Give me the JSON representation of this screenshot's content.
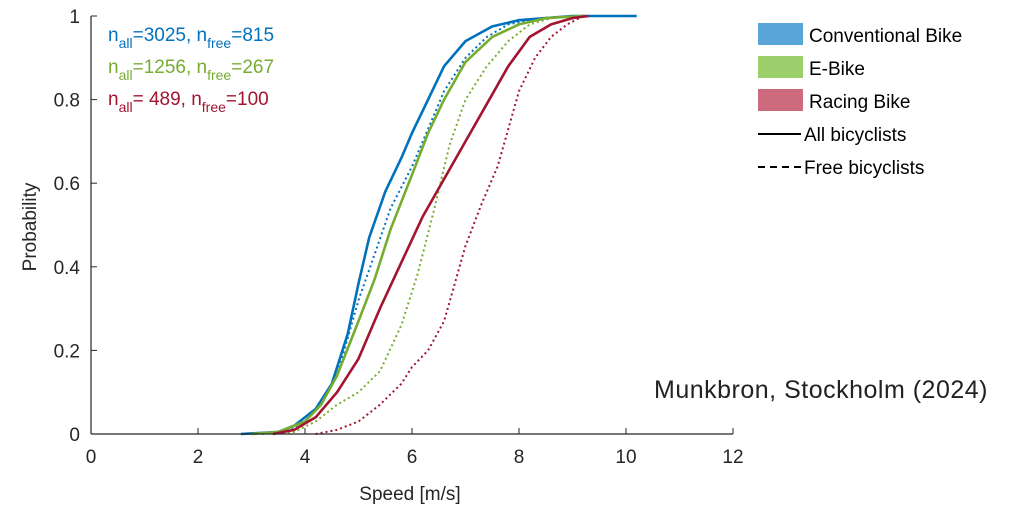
{
  "chart_data": {
    "type": "line",
    "xlabel": "Speed [m/s]",
    "ylabel": "Probability",
    "xlim": [
      0,
      12
    ],
    "ylim": [
      0,
      1
    ],
    "xticks": [
      0,
      2,
      4,
      6,
      8,
      10,
      12
    ],
    "yticks": [
      0,
      0.2,
      0.4,
      0.6,
      0.8,
      1
    ],
    "xtick_labels": [
      "0",
      "2",
      "4",
      "6",
      "8",
      "10",
      "12"
    ],
    "ytick_labels": [
      "0",
      "0.2",
      "0.4",
      "0.6",
      "0.8",
      "1"
    ],
    "grid": false,
    "legend_position": "outside-top-right",
    "legend": [
      {
        "label": "Conventional Bike",
        "kind": "patch",
        "color": "#5aa5d8"
      },
      {
        "label": "E-Bike",
        "kind": "patch",
        "color": "#9bcf6b"
      },
      {
        "label": "Racing Bike",
        "kind": "patch",
        "color": "#cd6a7e"
      },
      {
        "label": "All bicyclists",
        "kind": "line",
        "dash": "solid",
        "color": "#000000"
      },
      {
        "label": "Free bicyclists",
        "kind": "line",
        "dash": "dotted",
        "color": "#000000"
      }
    ],
    "annotations": [
      {
        "color": "#0072bd",
        "parts": [
          {
            "t": "n",
            "sub": false
          },
          {
            "t": "all",
            "sub": true
          },
          {
            "t": "=3025, n",
            "sub": false
          },
          {
            "t": "free",
            "sub": true
          },
          {
            "t": "=815",
            "sub": false
          }
        ]
      },
      {
        "color": "#77ac30",
        "parts": [
          {
            "t": "n",
            "sub": false
          },
          {
            "t": "all",
            "sub": true
          },
          {
            "t": "=1256, n",
            "sub": false
          },
          {
            "t": "free",
            "sub": true
          },
          {
            "t": "=267",
            "sub": false
          }
        ]
      },
      {
        "color": "#a2142f",
        "parts": [
          {
            "t": "n",
            "sub": false
          },
          {
            "t": "all",
            "sub": true
          },
          {
            "t": "= 489, n",
            "sub": false
          },
          {
            "t": "free",
            "sub": true
          },
          {
            "t": "=100",
            "sub": false
          }
        ]
      }
    ],
    "series": [
      {
        "color": "#0072bd",
        "dash": "solid",
        "x": [
          2.8,
          3.5,
          3.8,
          4.2,
          4.5,
          4.8,
          5.0,
          5.2,
          5.5,
          5.8,
          6.0,
          6.3,
          6.6,
          7.0,
          7.5,
          8.0,
          8.5,
          9.0,
          10.2
        ],
        "y": [
          0,
          0.005,
          0.02,
          0.06,
          0.12,
          0.24,
          0.36,
          0.47,
          0.58,
          0.66,
          0.72,
          0.8,
          0.88,
          0.94,
          0.975,
          0.99,
          0.995,
          1.0,
          1.0
        ]
      },
      {
        "color": "#0072bd",
        "dash": "dotted",
        "x": [
          3.2,
          3.6,
          4.0,
          4.3,
          4.6,
          5.0,
          5.3,
          5.6,
          6.0,
          6.3,
          6.6,
          7.0,
          7.4,
          7.8,
          8.2,
          9.0,
          10.0
        ],
        "y": [
          0,
          0.005,
          0.03,
          0.07,
          0.14,
          0.32,
          0.43,
          0.54,
          0.64,
          0.73,
          0.82,
          0.9,
          0.95,
          0.98,
          0.99,
          1.0,
          1.0
        ]
      },
      {
        "color": "#77ac30",
        "dash": "solid",
        "x": [
          3.0,
          3.5,
          4.0,
          4.3,
          4.6,
          5.0,
          5.3,
          5.6,
          6.0,
          6.3,
          6.6,
          7.0,
          7.5,
          8.0,
          8.5,
          9.2
        ],
        "y": [
          0,
          0.005,
          0.03,
          0.07,
          0.14,
          0.27,
          0.37,
          0.49,
          0.62,
          0.72,
          0.8,
          0.89,
          0.95,
          0.98,
          0.995,
          1.0
        ]
      },
      {
        "color": "#77ac30",
        "dash": "dotted",
        "x": [
          3.4,
          3.8,
          4.2,
          4.6,
          5.0,
          5.4,
          5.8,
          6.1,
          6.4,
          6.7,
          7.0,
          7.4,
          7.8,
          8.2,
          8.6,
          9.2
        ],
        "y": [
          0,
          0.005,
          0.03,
          0.07,
          0.1,
          0.15,
          0.26,
          0.38,
          0.53,
          0.69,
          0.8,
          0.88,
          0.94,
          0.98,
          0.995,
          1.0
        ]
      },
      {
        "color": "#a2142f",
        "dash": "solid",
        "x": [
          3.4,
          3.8,
          4.2,
          4.6,
          5.0,
          5.4,
          5.8,
          6.2,
          6.6,
          7.0,
          7.4,
          7.8,
          8.2,
          8.6,
          9.0,
          9.3
        ],
        "y": [
          0,
          0.01,
          0.04,
          0.1,
          0.18,
          0.3,
          0.41,
          0.52,
          0.61,
          0.7,
          0.79,
          0.88,
          0.95,
          0.98,
          0.995,
          1.0
        ]
      },
      {
        "color": "#a2142f",
        "dash": "dotted",
        "x": [
          4.2,
          4.6,
          5.0,
          5.4,
          5.8,
          6.0,
          6.3,
          6.6,
          6.8,
          7.0,
          7.3,
          7.6,
          7.8,
          8.0,
          8.3,
          8.6,
          8.9,
          9.2
        ],
        "y": [
          0,
          0.01,
          0.03,
          0.07,
          0.12,
          0.16,
          0.2,
          0.27,
          0.36,
          0.45,
          0.55,
          0.64,
          0.73,
          0.82,
          0.9,
          0.95,
          0.98,
          1.0
        ]
      }
    ]
  },
  "location_label": "Munkbron, Stockholm (2024)"
}
